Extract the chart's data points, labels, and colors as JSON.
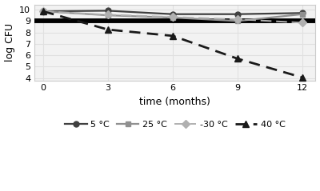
{
  "x": [
    0,
    3,
    6,
    9,
    12
  ],
  "series": {
    "5 °C": [
      9.85,
      9.9,
      9.6,
      9.6,
      9.7
    ],
    "25 °C": [
      9.85,
      9.5,
      9.3,
      9.0,
      9.6
    ],
    "-30 °C": [
      9.85,
      9.55,
      9.35,
      9.15,
      8.85
    ],
    "40 °C": [
      9.85,
      8.25,
      7.7,
      5.7,
      4.05
    ]
  },
  "hlines": [
    {
      "y": 9.0,
      "linewidth": 3.5,
      "color": "#000000",
      "zorder": 2
    },
    {
      "y": 9.08,
      "linewidth": 3.5,
      "color": "#000000",
      "zorder": 2
    }
  ],
  "line_styles": {
    "5 °C": {
      "color": "#404040",
      "linestyle": "-",
      "marker": "o",
      "markersize": 5,
      "linewidth": 1.6,
      "dashes": null
    },
    "25 °C": {
      "color": "#909090",
      "linestyle": "-",
      "marker": "s",
      "markersize": 5,
      "linewidth": 1.6,
      "dashes": null
    },
    "-30 °C": {
      "color": "#b0b0b0",
      "linestyle": "--",
      "marker": "D",
      "markersize": 5,
      "linewidth": 1.4,
      "dashes": [
        7,
        3
      ]
    },
    "40 °C": {
      "color": "#1a1a1a",
      "linestyle": "--",
      "marker": "^",
      "markersize": 6,
      "linewidth": 2.0,
      "dashes": [
        5,
        3
      ]
    }
  },
  "xlabel": "time (months)",
  "ylabel": "log CFU",
  "ylim": [
    3.8,
    10.45
  ],
  "xlim": [
    -0.4,
    12.6
  ],
  "yticks": [
    4,
    5,
    6,
    7,
    8,
    9,
    10
  ],
  "xticks": [
    0,
    3,
    6,
    9,
    12
  ],
  "grid": true,
  "grid_color": "#e0e0e0",
  "legend_order": [
    "5 °C",
    "25 °C",
    "-30 °C",
    "40 °C"
  ],
  "background_color": "#f2f2f2",
  "figure_color": "#ffffff",
  "xlabel_fontsize": 9,
  "ylabel_fontsize": 9,
  "tick_fontsize": 8,
  "legend_fontsize": 8
}
